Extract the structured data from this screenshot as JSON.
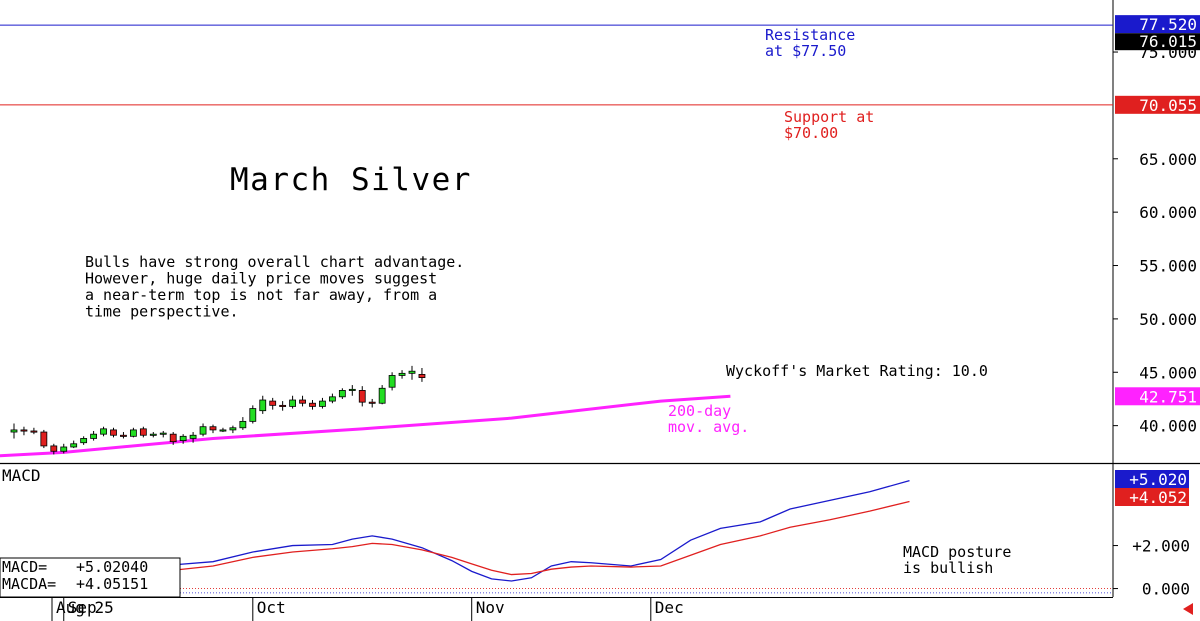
{
  "chart_data": [
    {
      "type": "candlestick",
      "title": "March Silver",
      "commentary": "Bulls have strong overall chart advantage.\nHowever, huge daily price moves suggest\na near-term top is not far away, from a\ntime perspective.",
      "rating_text": "Wyckoff's Market Rating: 10.0",
      "x_ticks": [
        {
          "label": "Aug 25",
          "index": 0
        },
        {
          "label": "Sep",
          "index": 5
        },
        {
          "label": "Oct",
          "index": 24
        },
        {
          "label": "Nov",
          "index": 46
        },
        {
          "label": "Dec",
          "index": 64
        }
      ],
      "y_ticks": [
        "40.000",
        "45.000",
        "50.000",
        "55.000",
        "60.000",
        "65.000",
        "75.000"
      ],
      "y_range": [
        36.5,
        79.5
      ],
      "resistance": {
        "value": 77.52,
        "label": "77.520",
        "note": "Resistance\nat $77.50",
        "color": "#1a1acc"
      },
      "support": {
        "value": 70.055,
        "label": "70.055",
        "note": "Support at\n$70.00",
        "color": "#e0201f"
      },
      "last_price": {
        "value": 76.015,
        "label": "76.015"
      },
      "ma200": {
        "label": "42.751",
        "note": "200-day\nmov. avg.",
        "color": "#ff22ff",
        "values": [
          {
            "x": -7,
            "y": 36.9
          },
          {
            "x": 5,
            "y": 37.5
          },
          {
            "x": 20,
            "y": 38.8
          },
          {
            "x": 35,
            "y": 39.7
          },
          {
            "x": 50,
            "y": 40.7
          },
          {
            "x": 65,
            "y": 42.3
          },
          {
            "x": 72,
            "y": 42.75
          }
        ]
      },
      "candles": [
        [
          39.4,
          40.2,
          38.8,
          39.6
        ],
        [
          39.6,
          39.9,
          39.1,
          39.5
        ],
        [
          39.5,
          39.8,
          39.2,
          39.4
        ],
        [
          39.4,
          39.6,
          37.9,
          38.1
        ],
        [
          38.1,
          38.3,
          37.3,
          37.6
        ],
        [
          37.6,
          38.3,
          37.4,
          38.0
        ],
        [
          38.0,
          38.6,
          37.9,
          38.3
        ],
        [
          38.4,
          39.0,
          38.2,
          38.8
        ],
        [
          38.8,
          39.5,
          38.6,
          39.2
        ],
        [
          39.2,
          39.9,
          39.0,
          39.7
        ],
        [
          39.6,
          39.8,
          38.9,
          39.1
        ],
        [
          39.1,
          39.4,
          38.8,
          39.0
        ],
        [
          39.0,
          39.8,
          38.9,
          39.6
        ],
        [
          39.7,
          39.9,
          38.9,
          39.1
        ],
        [
          39.1,
          39.4,
          38.9,
          39.2
        ],
        [
          39.2,
          39.5,
          38.9,
          39.3
        ],
        [
          39.2,
          39.4,
          38.2,
          38.5
        ],
        [
          38.6,
          39.2,
          38.3,
          39.0
        ],
        [
          38.8,
          39.4,
          38.4,
          39.1
        ],
        [
          39.2,
          40.2,
          39.0,
          39.9
        ],
        [
          39.9,
          40.1,
          39.3,
          39.6
        ],
        [
          39.6,
          39.8,
          39.4,
          39.6
        ],
        [
          39.6,
          40.0,
          39.3,
          39.8
        ],
        [
          39.8,
          40.8,
          39.6,
          40.4
        ],
        [
          40.4,
          41.9,
          40.2,
          41.6
        ],
        [
          41.4,
          42.8,
          41.1,
          42.4
        ],
        [
          42.3,
          42.6,
          41.5,
          41.9
        ],
        [
          41.9,
          42.3,
          41.4,
          41.8
        ],
        [
          41.8,
          42.8,
          41.6,
          42.4
        ],
        [
          42.4,
          42.8,
          41.8,
          42.1
        ],
        [
          42.1,
          42.4,
          41.5,
          41.8
        ],
        [
          41.8,
          42.6,
          41.6,
          42.3
        ],
        [
          42.3,
          43.0,
          42.1,
          42.7
        ],
        [
          42.7,
          43.5,
          42.5,
          43.3
        ],
        [
          43.3,
          43.8,
          42.8,
          43.4
        ],
        [
          43.3,
          43.7,
          41.8,
          42.2
        ],
        [
          42.2,
          42.5,
          41.7,
          42.1
        ],
        [
          42.1,
          43.8,
          42.0,
          43.5
        ],
        [
          43.6,
          45.0,
          43.3,
          44.7
        ],
        [
          44.7,
          45.2,
          44.4,
          44.9
        ],
        [
          44.9,
          45.6,
          44.3,
          45.1
        ],
        [
          44.8,
          45.4,
          44.1,
          44.5
        ]
      ]
    },
    {
      "type": "line",
      "title": "MACD",
      "legend": [
        {
          "name": "MACD=",
          "value": "+5.02040"
        },
        {
          "name": "MACDA=",
          "value": "+4.05151"
        }
      ],
      "note": "MACD posture\nis bullish",
      "y_ticks": [
        "+2.000",
        "0.000"
      ],
      "y_range": [
        -0.3,
        5.7
      ],
      "end_labels": [
        {
          "label": "+5.020",
          "value": 5.02,
          "color": "#1a1acc"
        },
        {
          "label": "+4.052",
          "value": 4.052,
          "color": "#e0201f"
        }
      ],
      "series": [
        {
          "name": "MACD",
          "color": "#1a1acc",
          "points": [
            [
              -7,
              0.05
            ],
            [
              0,
              0.1
            ],
            [
              5,
              0.12
            ],
            [
              8,
              0.6
            ],
            [
              12,
              0.85
            ],
            [
              16,
              1.1
            ],
            [
              20,
              1.25
            ],
            [
              24,
              1.7
            ],
            [
              28,
              2.0
            ],
            [
              32,
              2.05
            ],
            [
              34,
              2.3
            ],
            [
              36,
              2.45
            ],
            [
              38,
              2.3
            ],
            [
              41,
              1.9
            ],
            [
              44,
              1.3
            ],
            [
              46,
              0.8
            ],
            [
              48,
              0.45
            ],
            [
              50,
              0.35
            ],
            [
              52,
              0.5
            ],
            [
              54,
              1.05
            ],
            [
              56,
              1.25
            ],
            [
              58,
              1.2
            ],
            [
              62,
              1.05
            ],
            [
              65,
              1.35
            ],
            [
              68,
              2.25
            ],
            [
              71,
              2.8
            ],
            [
              75,
              3.1
            ],
            [
              78,
              3.7
            ],
            [
              82,
              4.1
            ],
            [
              86,
              4.5
            ],
            [
              90,
              5.02
            ]
          ]
        },
        {
          "name": "MACDA",
          "color": "#e0201f",
          "points": [
            [
              -7,
              0.08
            ],
            [
              0,
              0.1
            ],
            [
              5,
              0.1
            ],
            [
              8,
              0.4
            ],
            [
              12,
              0.65
            ],
            [
              16,
              0.85
            ],
            [
              20,
              1.05
            ],
            [
              24,
              1.45
            ],
            [
              28,
              1.7
            ],
            [
              32,
              1.85
            ],
            [
              34,
              1.95
            ],
            [
              36,
              2.1
            ],
            [
              38,
              2.05
            ],
            [
              41,
              1.8
            ],
            [
              44,
              1.45
            ],
            [
              46,
              1.15
            ],
            [
              48,
              0.85
            ],
            [
              50,
              0.65
            ],
            [
              52,
              0.7
            ],
            [
              54,
              0.9
            ],
            [
              56,
              1.0
            ],
            [
              58,
              1.05
            ],
            [
              62,
              1.0
            ],
            [
              65,
              1.05
            ],
            [
              68,
              1.55
            ],
            [
              71,
              2.05
            ],
            [
              75,
              2.45
            ],
            [
              78,
              2.85
            ],
            [
              82,
              3.2
            ],
            [
              86,
              3.6
            ],
            [
              90,
              4.05
            ]
          ]
        }
      ]
    }
  ]
}
